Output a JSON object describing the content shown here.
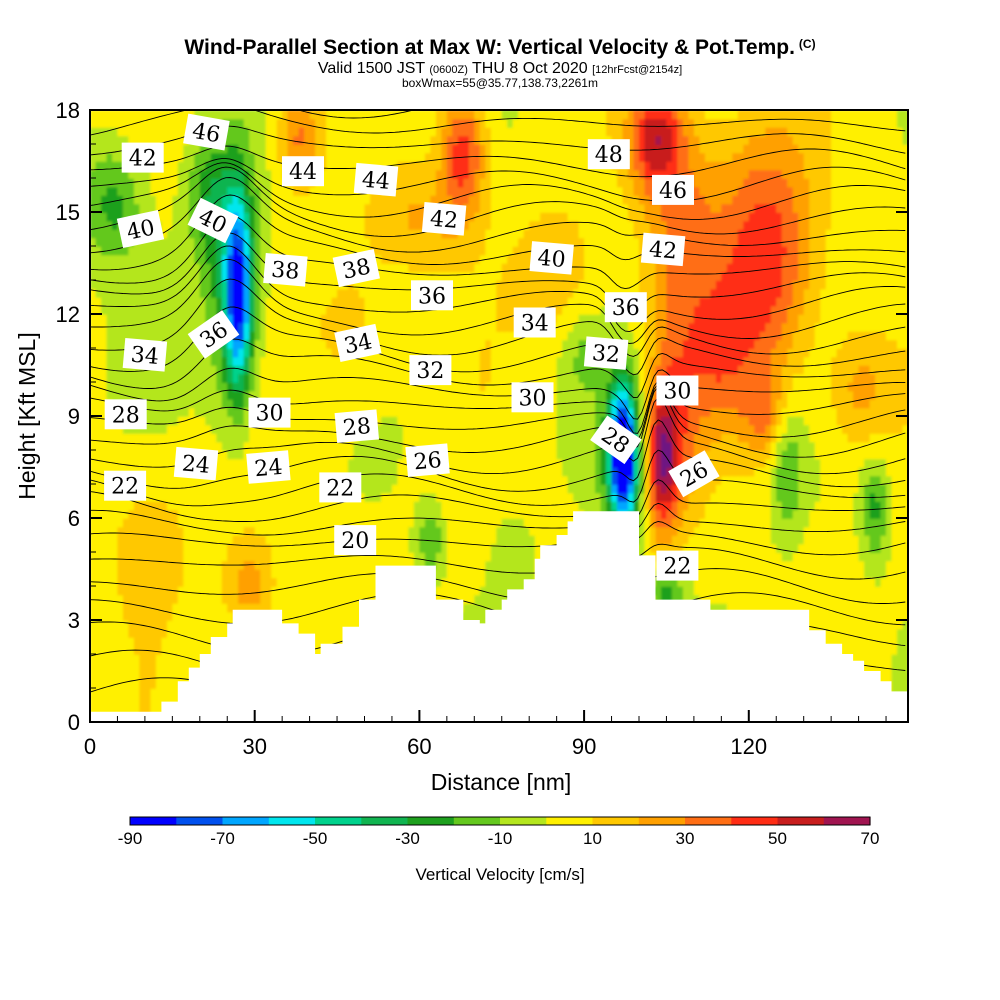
{
  "header": {
    "title": "Wind-Parallel Section at Max W: Vertical Velocity & Pot.Temp.",
    "copyright": "(C)",
    "subtitle_main": "Valid 1500 JST",
    "subtitle_utc": "(0600Z)",
    "subtitle_date": "THU 8 Oct 2020",
    "subtitle_fcst": "[12hrFcst@2154z]",
    "box_info": "boxWmax=55@35.77,138.73,2261m"
  },
  "colors": {
    "terrain": "#ffffff",
    "axes": "#000000",
    "contour_line": "#000000"
  },
  "chart_data": {
    "type": "heatmap",
    "xlabel": "Distance [nm]",
    "ylabel": "Height [Kft MSL]",
    "xlim": [
      0,
      149
    ],
    "ylim": [
      0,
      18
    ],
    "x_ticks": [
      0,
      30,
      60,
      90,
      120
    ],
    "y_ticks": [
      0,
      3,
      6,
      9,
      12,
      15,
      18
    ],
    "grid": false,
    "colorbar": {
      "label": "Vertical Velocity [cm/s]",
      "tick_labels": [
        "-90",
        "-70",
        "-50",
        "-30",
        "-10",
        "10",
        "30",
        "50",
        "70"
      ],
      "levels": [
        -90,
        -80,
        -70,
        -60,
        -50,
        -40,
        -30,
        -20,
        -10,
        0,
        10,
        20,
        30,
        40,
        50,
        60,
        70
      ],
      "colors": [
        "#0000ff",
        "#0050ee",
        "#00a6ff",
        "#00e6ee",
        "#00d28c",
        "#10b450",
        "#1ea01e",
        "#64c81e",
        "#b4e61e",
        "#fff000",
        "#ffc800",
        "#ffa000",
        "#ff6e14",
        "#ff2d14",
        "#c81e1e",
        "#a01450",
        "#6e1482"
      ]
    },
    "terrain_profile": {
      "x": [
        0,
        13,
        13,
        16,
        16,
        18,
        18,
        20,
        20,
        22,
        22,
        25,
        25,
        26,
        26,
        29,
        29,
        35,
        35,
        38,
        38,
        41,
        41,
        42,
        42,
        45,
        45,
        46,
        46,
        49,
        49,
        52,
        52,
        57,
        57,
        63,
        63,
        68,
        68,
        71,
        71,
        72,
        72,
        75,
        75,
        76,
        76,
        79,
        79,
        81,
        81,
        82,
        82,
        85,
        85,
        87,
        87,
        88,
        88,
        91,
        91,
        92,
        92,
        95,
        95,
        100,
        100,
        103,
        103,
        108,
        108,
        113,
        113,
        119,
        119,
        131,
        131,
        134,
        134,
        137,
        137,
        139,
        139,
        141,
        141,
        144,
        144,
        146,
        146,
        149
      ],
      "height": [
        0.3,
        0.3,
        0.6,
        0.6,
        1.2,
        1.2,
        1.6,
        1.6,
        2.0,
        2.0,
        2.5,
        2.5,
        2.9,
        2.9,
        3.3,
        3.3,
        3.3,
        3.3,
        2.9,
        2.9,
        2.6,
        2.6,
        2.0,
        2.0,
        2.3,
        2.3,
        2.3,
        2.3,
        2.8,
        2.8,
        3.6,
        3.6,
        4.6,
        4.6,
        4.6,
        4.6,
        3.6,
        3.6,
        3.0,
        3.0,
        2.9,
        2.9,
        3.3,
        3.3,
        3.6,
        3.6,
        3.9,
        3.9,
        4.2,
        4.2,
        4.8,
        4.8,
        5.2,
        5.2,
        5.5,
        5.5,
        5.9,
        5.9,
        6.2,
        6.2,
        6.2,
        6.2,
        6.2,
        6.2,
        6.2,
        6.2,
        4.9,
        4.9,
        3.6,
        3.6,
        3.6,
        3.6,
        3.3,
        3.3,
        3.3,
        3.3,
        2.7,
        2.7,
        2.3,
        2.3,
        2.0,
        2.0,
        1.8,
        1.8,
        1.5,
        1.5,
        1.2,
        1.2,
        0.9,
        0.9
      ]
    },
    "w_features": [
      {
        "x": 103,
        "y": 17.2,
        "w": 48,
        "rx": 5,
        "ry": 1.6
      },
      {
        "x": 68,
        "y": 16.8,
        "w": 45,
        "rx": 4,
        "ry": 1.8
      },
      {
        "x": 123,
        "y": 13.6,
        "w": 45,
        "rx": 9,
        "ry": 3.8
      },
      {
        "x": 38,
        "y": 17.2,
        "w": 30,
        "rx": 4,
        "ry": 1.4
      },
      {
        "x": 108,
        "y": 14.2,
        "w": 28,
        "rx": 7,
        "ry": 4.0
      },
      {
        "x": 27,
        "y": 12.6,
        "w": -70,
        "rx": 2.4,
        "ry": 2.8
      },
      {
        "x": 26,
        "y": 12.8,
        "w": -32,
        "rx": 5.5,
        "ry": 3.6
      },
      {
        "x": 22,
        "y": 15.5,
        "w": -24,
        "rx": 4.5,
        "ry": 1.8
      },
      {
        "x": 4,
        "y": 15.3,
        "w": -26,
        "rx": 5.5,
        "ry": 1.8
      },
      {
        "x": 97,
        "y": 8.0,
        "w": -78,
        "rx": 2.2,
        "ry": 1.8
      },
      {
        "x": 97.5,
        "y": 7.6,
        "w": -45,
        "rx": 4,
        "ry": 2.4
      },
      {
        "x": 104,
        "y": 7.6,
        "w": 48,
        "rx": 2.8,
        "ry": 1.9
      },
      {
        "x": 106,
        "y": 8.4,
        "w": 30,
        "rx": 4.8,
        "ry": 2.8
      },
      {
        "x": 127,
        "y": 7.5,
        "w": -22,
        "rx": 2.8,
        "ry": 2.0
      },
      {
        "x": 143,
        "y": 6.3,
        "w": -26,
        "rx": 2.4,
        "ry": 1.5
      },
      {
        "x": 140,
        "y": 9.8,
        "w": 22,
        "rx": 6,
        "ry": 1.8
      },
      {
        "x": 115,
        "y": 10.5,
        "w": 18,
        "rx": 6,
        "ry": 2.0
      },
      {
        "x": 29,
        "y": 4.0,
        "w": 24,
        "rx": 4.5,
        "ry": 1.4
      },
      {
        "x": 11,
        "y": 5.5,
        "w": 12,
        "rx": 9,
        "ry": 2.5
      },
      {
        "x": 62,
        "y": 5.3,
        "w": -22,
        "rx": 2.5,
        "ry": 1.0
      },
      {
        "x": 77,
        "y": 4.6,
        "w": -12,
        "rx": 3.5,
        "ry": 1.5
      },
      {
        "x": 90,
        "y": 10.8,
        "w": -12,
        "rx": 3.5,
        "ry": 1.2
      },
      {
        "x": 105,
        "y": 3.85,
        "w": -30,
        "rx": 3.2,
        "ry": 0.5
      },
      {
        "x": 48,
        "y": 11.5,
        "w": 14,
        "rx": 8,
        "ry": 2.5
      },
      {
        "x": 85,
        "y": 13.2,
        "w": 16,
        "rx": 8,
        "ry": 2.0
      },
      {
        "x": 60,
        "y": 14.8,
        "w": 18,
        "rx": 9,
        "ry": 1.5
      },
      {
        "x": 123,
        "y": 9.0,
        "w": 22,
        "rx": 4,
        "ry": 1.2
      }
    ],
    "theta_contours": {
      "levels": [
        18,
        19,
        20,
        21,
        22,
        23,
        24,
        25,
        26,
        27,
        28,
        29,
        30,
        31,
        32,
        33,
        34,
        35,
        36,
        37,
        38,
        39,
        40,
        41,
        42,
        43,
        44,
        45,
        46,
        47,
        48,
        49,
        50
      ],
      "base_height": [
        0.8,
        1.6,
        2.5,
        3.3,
        4.0,
        4.7,
        5.3,
        5.8,
        6.3,
        6.8,
        7.3,
        7.8,
        8.3,
        8.8,
        9.3,
        9.8,
        10.3,
        10.8,
        11.3,
        11.8,
        12.3,
        12.8,
        13.3,
        13.8,
        14.3,
        14.8,
        15.3,
        15.8,
        16.4,
        17.0,
        17.6,
        18.2,
        18.8
      ]
    },
    "contour_labels": [
      {
        "text": "46",
        "x": 21.2,
        "y": 17.35,
        "rot": 10
      },
      {
        "text": "42",
        "x": 9.6,
        "y": 16.6,
        "rot": 0
      },
      {
        "text": "44",
        "x": 38.8,
        "y": 16.2,
        "rot": 0
      },
      {
        "text": "44",
        "x": 52.1,
        "y": 15.95,
        "rot": 5
      },
      {
        "text": "48",
        "x": 94.5,
        "y": 16.7,
        "rot": 0
      },
      {
        "text": "46",
        "x": 106.2,
        "y": 15.65,
        "rot": 0
      },
      {
        "text": "40",
        "x": 9.2,
        "y": 14.5,
        "rot": -12
      },
      {
        "text": "40",
        "x": 22.4,
        "y": 14.75,
        "rot": 26
      },
      {
        "text": "42",
        "x": 64.5,
        "y": 14.8,
        "rot": 5
      },
      {
        "text": "42",
        "x": 104.4,
        "y": 13.9,
        "rot": 5
      },
      {
        "text": "40",
        "x": 84.1,
        "y": 13.65,
        "rot": 5
      },
      {
        "text": "38",
        "x": 35.6,
        "y": 13.3,
        "rot": 5
      },
      {
        "text": "38",
        "x": 48.5,
        "y": 13.35,
        "rot": -12
      },
      {
        "text": "36",
        "x": 62.3,
        "y": 12.55,
        "rot": 0
      },
      {
        "text": "36",
        "x": 97.6,
        "y": 12.2,
        "rot": 0
      },
      {
        "text": "34",
        "x": 81.0,
        "y": 11.75,
        "rot": 0
      },
      {
        "text": "36",
        "x": 22.5,
        "y": 11.4,
        "rot": -35
      },
      {
        "text": "34",
        "x": 48.8,
        "y": 11.15,
        "rot": -12
      },
      {
        "text": "32",
        "x": 94.0,
        "y": 10.85,
        "rot": 5
      },
      {
        "text": "34",
        "x": 10.0,
        "y": 10.8,
        "rot": 5
      },
      {
        "text": "32",
        "x": 62.0,
        "y": 10.35,
        "rot": 0
      },
      {
        "text": "30",
        "x": 107.0,
        "y": 9.75,
        "rot": 0
      },
      {
        "text": "30",
        "x": 80.6,
        "y": 9.55,
        "rot": 0
      },
      {
        "text": "30",
        "x": 32.7,
        "y": 9.1,
        "rot": 0
      },
      {
        "text": "28",
        "x": 6.5,
        "y": 9.05,
        "rot": 0
      },
      {
        "text": "28",
        "x": 48.6,
        "y": 8.7,
        "rot": -5
      },
      {
        "text": "28",
        "x": 95.8,
        "y": 8.3,
        "rot": 35
      },
      {
        "text": "26",
        "x": 61.5,
        "y": 7.7,
        "rot": -5
      },
      {
        "text": "24",
        "x": 19.3,
        "y": 7.6,
        "rot": 5
      },
      {
        "text": "24",
        "x": 32.5,
        "y": 7.5,
        "rot": -5
      },
      {
        "text": "26",
        "x": 110.0,
        "y": 7.3,
        "rot": -30
      },
      {
        "text": "22",
        "x": 6.4,
        "y": 6.95,
        "rot": 0
      },
      {
        "text": "22",
        "x": 45.6,
        "y": 6.9,
        "rot": 0
      },
      {
        "text": "20",
        "x": 48.3,
        "y": 5.35,
        "rot": 0
      },
      {
        "text": "22",
        "x": 107.0,
        "y": 4.6,
        "rot": 0
      }
    ]
  }
}
